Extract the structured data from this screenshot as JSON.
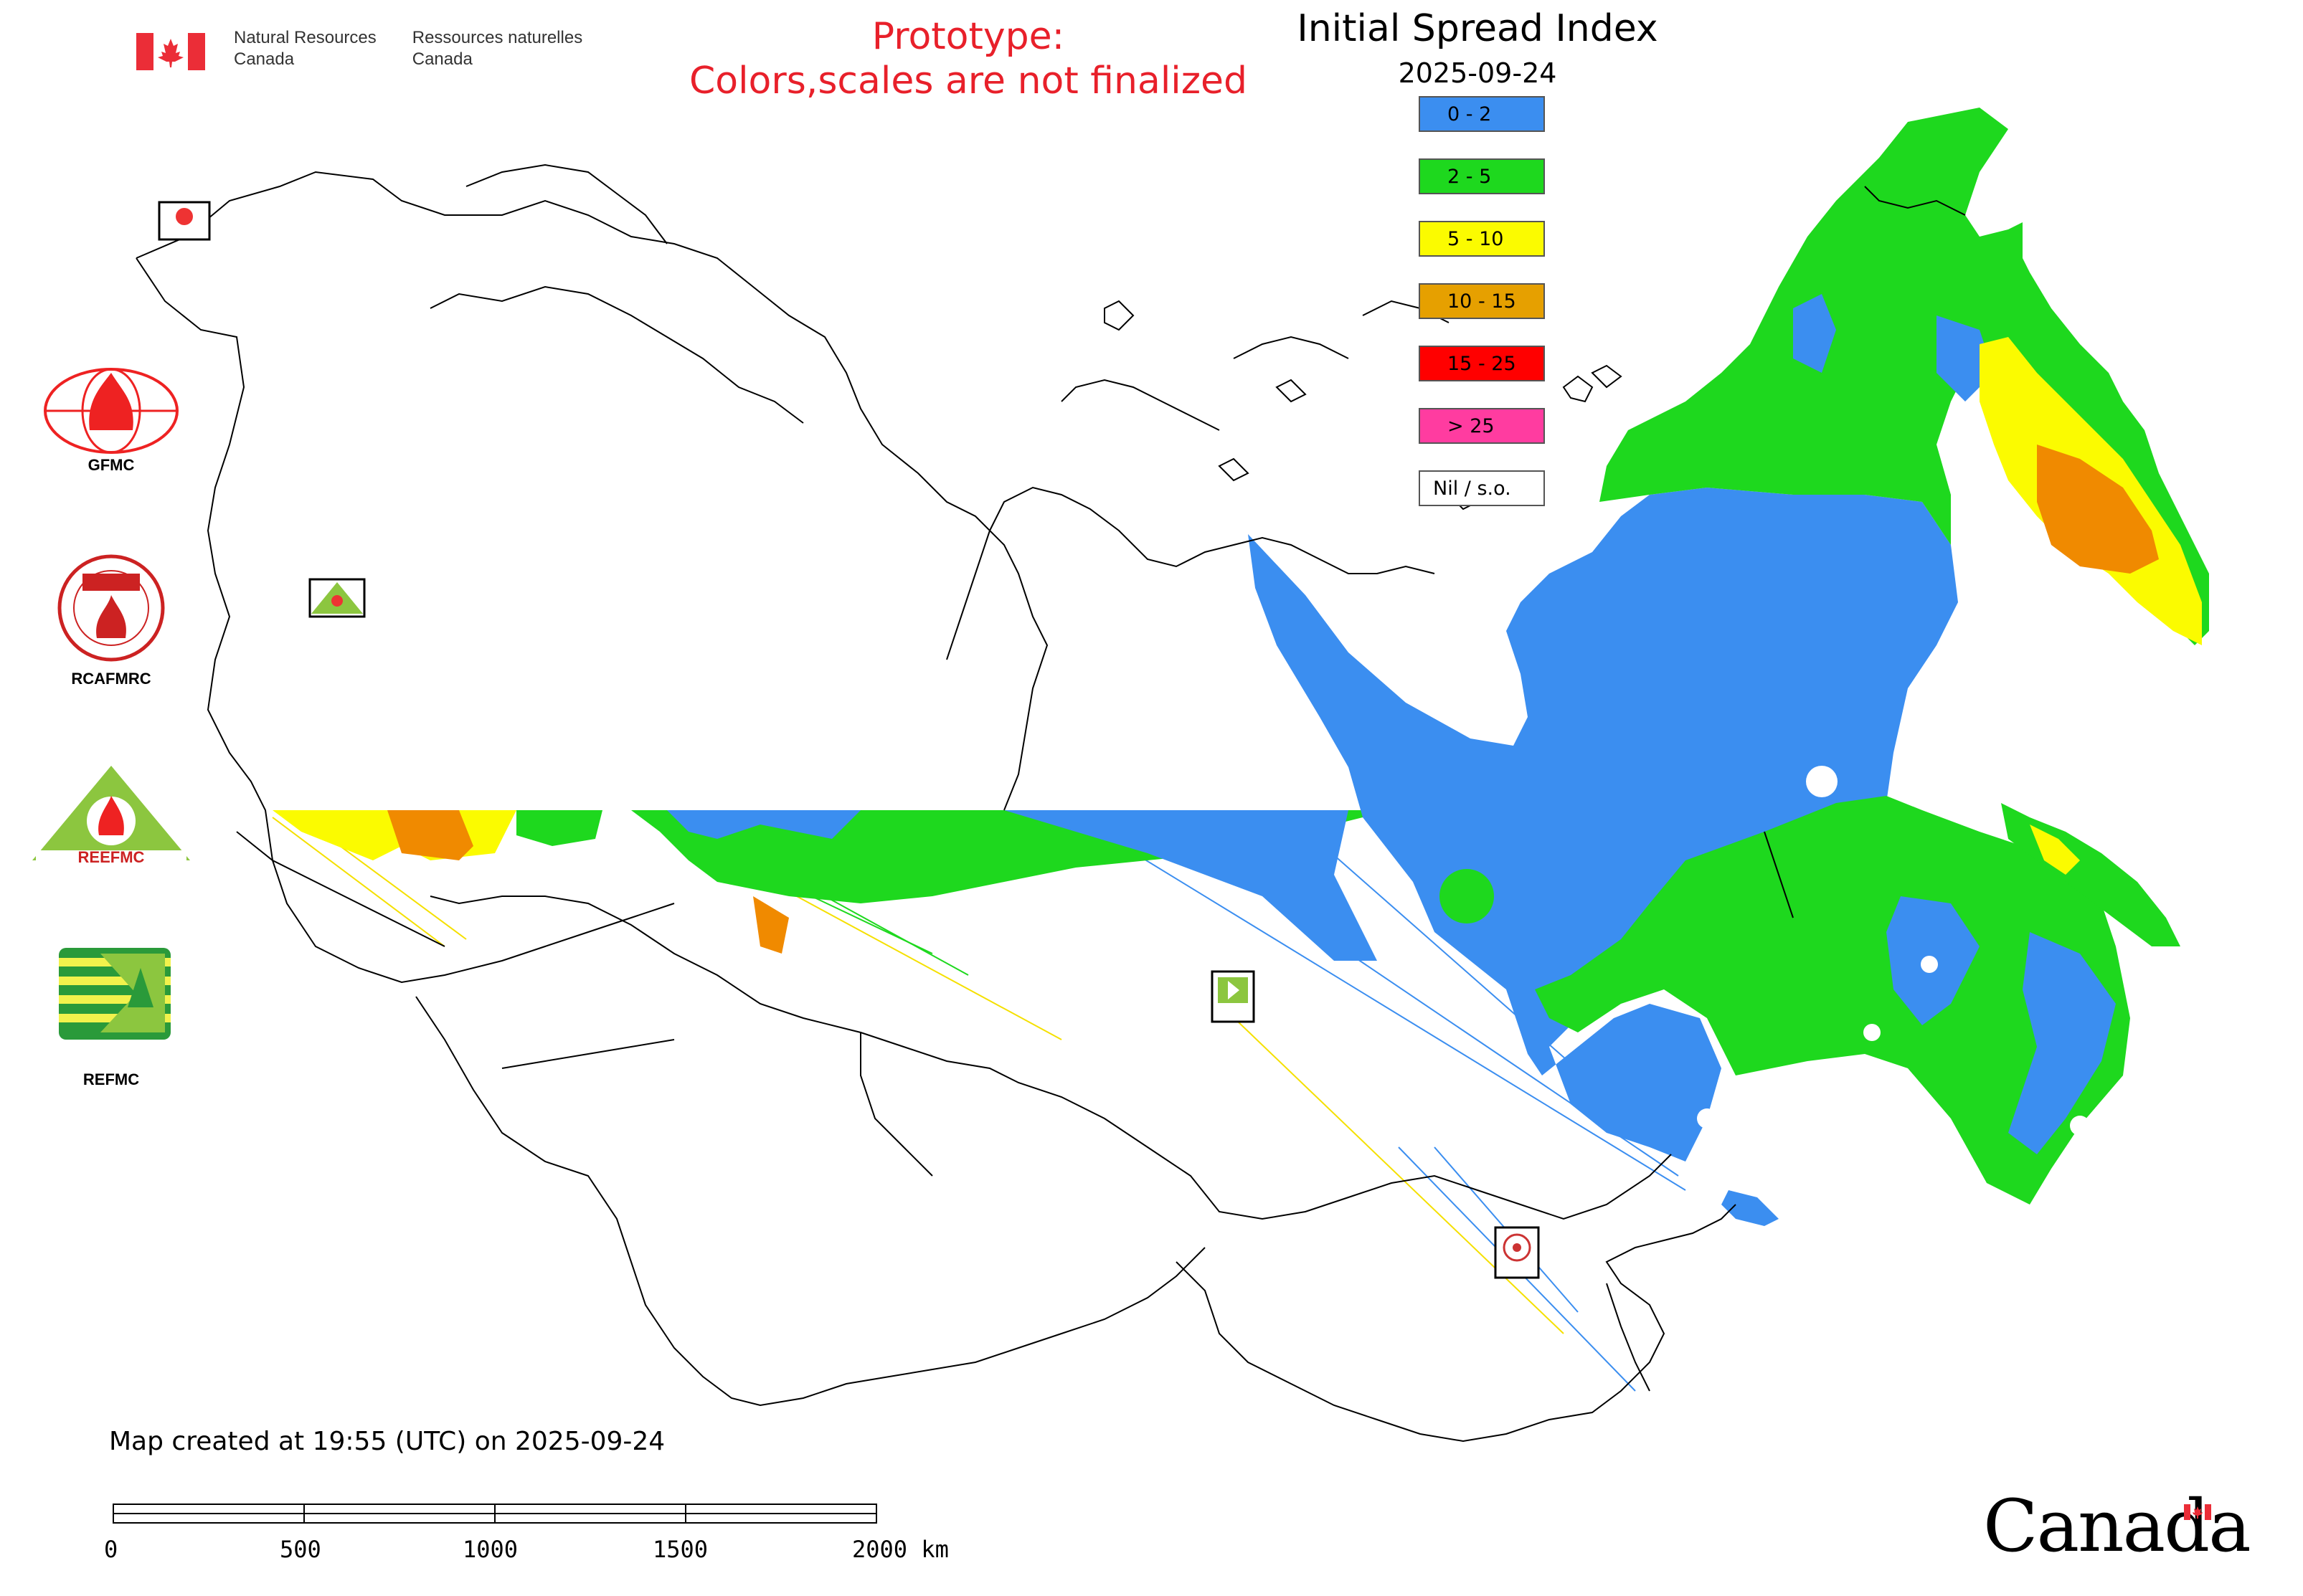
{
  "header": {
    "org_en_line1": "Natural Resources",
    "org_en_line2": "Canada",
    "org_fr_line1": "Ressources naturelles",
    "org_fr_line2": "Canada"
  },
  "notice": {
    "line1": "Prototype:",
    "line2": "Colors,scales are not finalized"
  },
  "map": {
    "title": "Initial Spread Index",
    "date": "2025-09-24",
    "created_text": "Map created at 19:55 (UTC) on 2025-09-24"
  },
  "legend": [
    {
      "label": "0 - 2",
      "color": "#3b8ef0"
    },
    {
      "label": "2 - 5",
      "color": "#1ed81e"
    },
    {
      "label": "5 - 10",
      "color": "#fbfb00"
    },
    {
      "label": "10 - 15",
      "color": "#e6a000"
    },
    {
      "label": "15 - 25",
      "color": "#ff0000"
    },
    {
      "label": "> 25",
      "color": "#ff3ca0"
    },
    {
      "label": "Nil / s.o.",
      "color": "#ffffff"
    }
  ],
  "organizations": [
    {
      "name": "GFMC",
      "icon": "gfmc-logo"
    },
    {
      "name": "RCAFMRC",
      "icon": "rcafmrc-logo"
    },
    {
      "name": "REEFMC",
      "icon": "reefmc-logo"
    },
    {
      "name": "REFMC",
      "icon": "refmc-logo"
    }
  ],
  "scale": {
    "ticks": [
      "0",
      "500",
      "1000",
      "1500",
      "2000 km"
    ]
  },
  "footer": {
    "wordmark": "Canada"
  },
  "colors": {
    "notice_red": "#e8202a",
    "canada_red": "#eb2d37"
  }
}
